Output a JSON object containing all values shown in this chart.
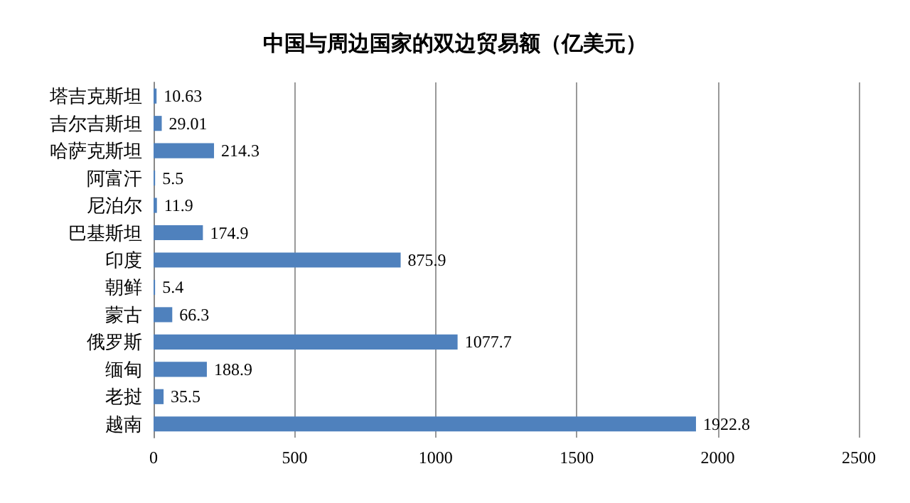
{
  "chart_data": {
    "type": "bar",
    "orientation": "horizontal",
    "title": "中国与周边国家的双边贸易额（亿美元）",
    "categories": [
      "塔吉克斯坦",
      "吉尔吉斯坦",
      "哈萨克斯坦",
      "阿富汗",
      "尼泊尔",
      "巴基斯坦",
      "印度",
      "朝鲜",
      "蒙古",
      "俄罗斯",
      "缅甸",
      "老挝",
      "越南"
    ],
    "values": [
      10.63,
      29.01,
      214.3,
      5.5,
      11.9,
      174.9,
      875.9,
      5.4,
      66.3,
      1077.7,
      188.9,
      35.5,
      1922.8
    ],
    "color": "#4f81bd",
    "xlim": [
      0,
      2500
    ],
    "xticks": [
      0,
      500,
      1000,
      1500,
      2000,
      2500
    ],
    "grid": "x",
    "data_labels": true
  }
}
